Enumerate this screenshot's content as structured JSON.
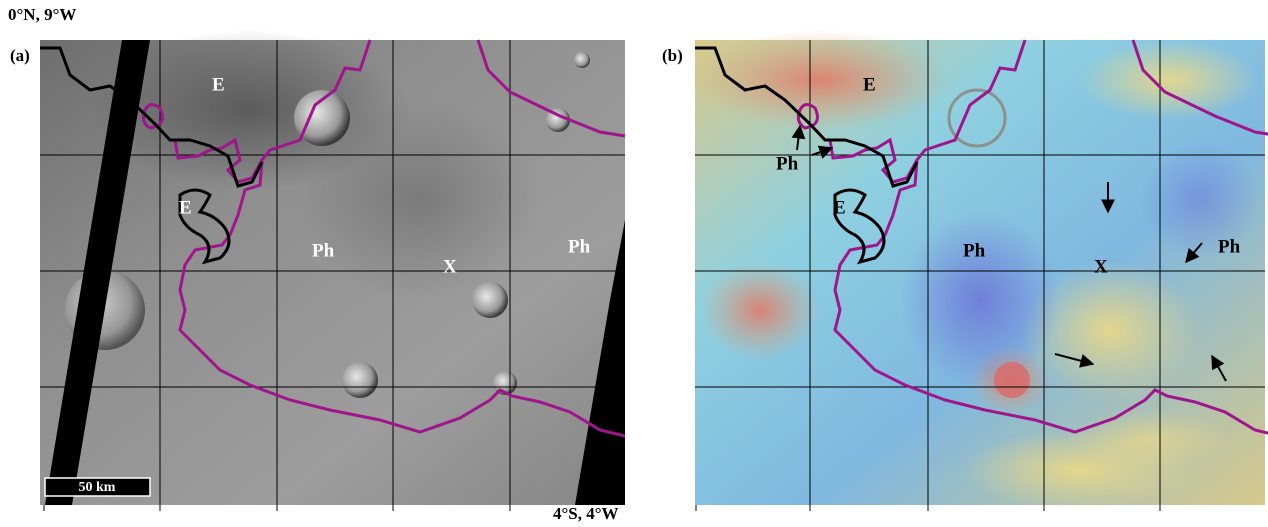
{
  "figure": {
    "corner_top_left": "0°N, 9°W",
    "corner_bottom_right": "4°S, 4°W",
    "panels": [
      {
        "label": "(a)",
        "annotations": [
          "E",
          "E",
          "Ph",
          "X",
          "Ph"
        ],
        "scale_bar": "50 km"
      },
      {
        "label": "(b)",
        "annotations": [
          "E",
          "Ph",
          "E",
          "Ph",
          "X",
          "Ph"
        ]
      }
    ]
  }
}
